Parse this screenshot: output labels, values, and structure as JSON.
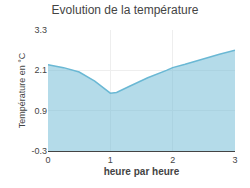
{
  "chart_data": {
    "type": "area",
    "title": "Evolution de la température",
    "xlabel": "heure par heure",
    "ylabel": "Température en °C",
    "x": [
      0,
      0.25,
      0.5,
      0.75,
      1.0,
      1.1,
      1.3,
      1.6,
      1.9,
      2.0,
      2.2,
      2.5,
      2.75,
      3.0
    ],
    "series": [
      {
        "color": "#6ab8d4",
        "values": [
          2.27,
          2.18,
          2.05,
          1.78,
          1.42,
          1.44,
          1.62,
          1.88,
          2.1,
          2.18,
          2.28,
          2.45,
          2.58,
          2.7
        ]
      }
    ],
    "xlim": [
      0,
      3
    ],
    "ylim": [
      -0.3,
      3.3
    ],
    "xticks": [
      0,
      1,
      2,
      3
    ],
    "yticks": [
      -0.3,
      0.9,
      2.1,
      3.3
    ],
    "grid": true
  }
}
